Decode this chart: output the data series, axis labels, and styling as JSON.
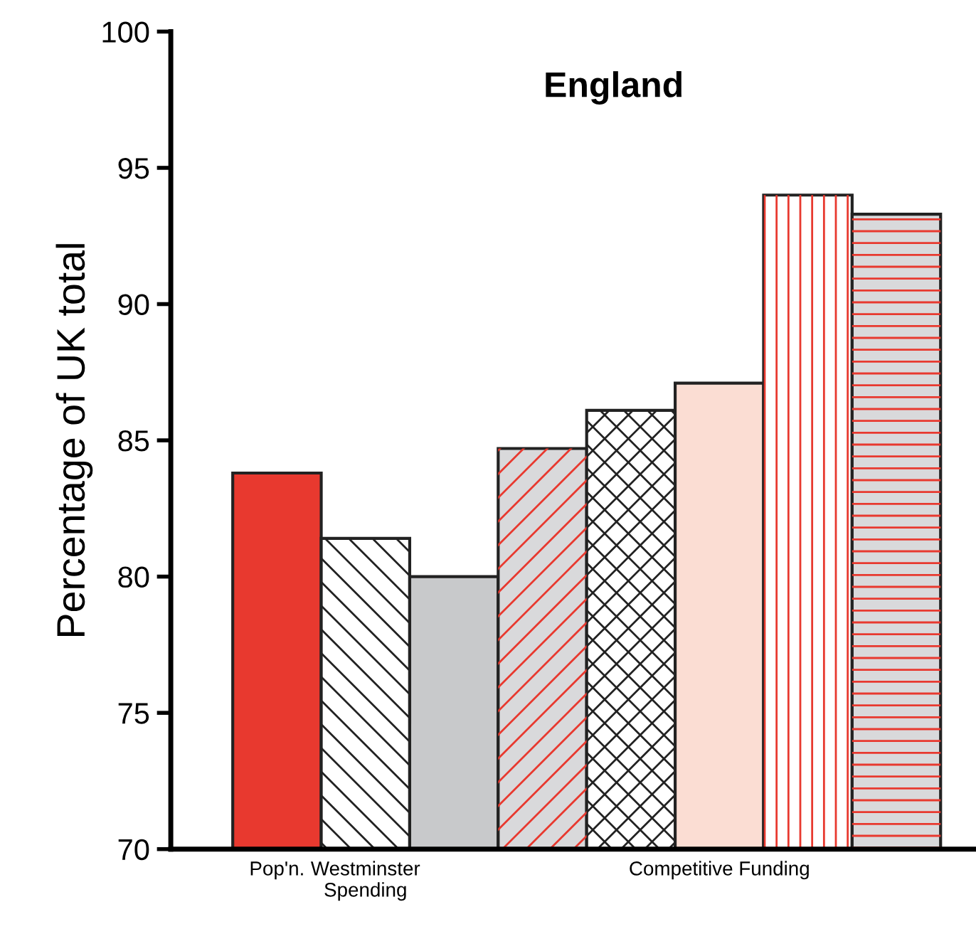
{
  "chart_data": {
    "type": "bar",
    "title": "England",
    "ylabel": "Percentage of UK total",
    "categories": [
      "Pop'n.",
      "Westminster\nSpending",
      null,
      null,
      null,
      "Competitive Funding",
      null,
      null
    ],
    "values": [
      83.8,
      81.4,
      80.0,
      84.7,
      86.1,
      87.1,
      94.0,
      93.3
    ],
    "colors": [
      "#e8392f",
      "#ffffff",
      "#c8c9cb",
      "#d9d9db",
      "#ffffff",
      "#fbddd3",
      "#ffffff",
      "#d9d9db"
    ],
    "ylim": [
      70,
      100
    ],
    "yticks": [
      70,
      75,
      80,
      85,
      90,
      95,
      100
    ],
    "grid": false,
    "legend": false
  }
}
